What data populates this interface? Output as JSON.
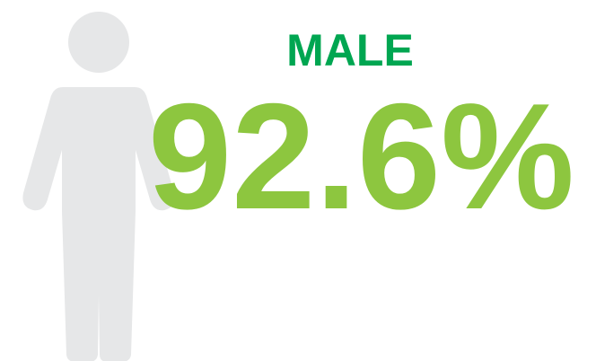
{
  "label": "MALE",
  "stat": "92.6%"
}
